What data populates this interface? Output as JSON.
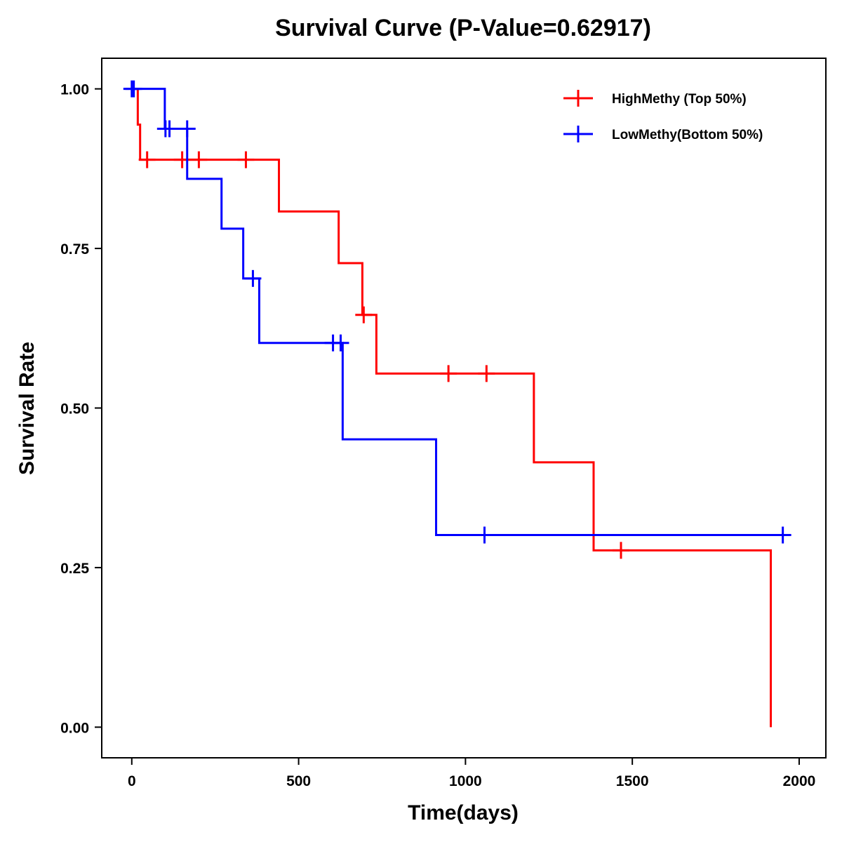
{
  "chart_data": {
    "type": "line",
    "subtype": "kaplan-meier step",
    "title": "Survival Curve (P-Value=0.62917)",
    "xlabel": "Time(days)",
    "ylabel": "Survival Rate",
    "xlim": [
      -90,
      2080
    ],
    "ylim": [
      -0.048,
      1.048
    ],
    "xticks": [
      0,
      500,
      1000,
      1500,
      2000
    ],
    "xtick_labels": [
      "0",
      "500",
      "1000",
      "1500",
      "2000"
    ],
    "yticks": [
      0,
      0.25,
      0.5,
      0.75,
      1.0
    ],
    "ytick_labels": [
      "0.00",
      "0.25",
      "0.50",
      "0.75",
      "1.00"
    ],
    "grid": false,
    "legend_position": "top-right",
    "series": [
      {
        "name": "HighMethy (Top 50%)",
        "color": "#ff0000",
        "steps": [
          {
            "t": 0,
            "s": 1.0
          },
          {
            "t": 18,
            "s": 0.944
          },
          {
            "t": 25,
            "s": 0.889
          },
          {
            "t": 441,
            "s": 0.808
          },
          {
            "t": 620,
            "s": 0.727
          },
          {
            "t": 691,
            "s": 0.646
          },
          {
            "t": 733,
            "s": 0.554
          },
          {
            "t": 1205,
            "s": 0.415
          },
          {
            "t": 1384,
            "s": 0.277
          },
          {
            "t": 1915,
            "s": 0.0
          }
        ],
        "end_time": 1915,
        "censored": [
          {
            "t": 46,
            "s": 0.889
          },
          {
            "t": 151,
            "s": 0.889
          },
          {
            "t": 201,
            "s": 0.889
          },
          {
            "t": 342,
            "s": 0.889
          },
          {
            "t": 695,
            "s": 0.646
          },
          {
            "t": 949,
            "s": 0.554
          },
          {
            "t": 1063,
            "s": 0.554
          },
          {
            "t": 1466,
            "s": 0.277
          }
        ]
      },
      {
        "name": "LowMethy(Bottom 50%)",
        "color": "#0000ff",
        "steps": [
          {
            "t": 0,
            "s": 1.0
          },
          {
            "t": 99,
            "s": 0.9375
          },
          {
            "t": 166,
            "s": 0.859
          },
          {
            "t": 269,
            "s": 0.781
          },
          {
            "t": 334,
            "s": 0.703
          },
          {
            "t": 382,
            "s": 0.602
          },
          {
            "t": 632,
            "s": 0.451
          },
          {
            "t": 912,
            "s": 0.301
          }
        ],
        "end_time": 1951,
        "censored": [
          {
            "t": 0,
            "s": 1.0
          },
          {
            "t": 6,
            "s": 1.0
          },
          {
            "t": 101,
            "s": 0.9375
          },
          {
            "t": 113,
            "s": 0.9375
          },
          {
            "t": 166,
            "s": 0.9375
          },
          {
            "t": 363,
            "s": 0.703
          },
          {
            "t": 603,
            "s": 0.602
          },
          {
            "t": 626,
            "s": 0.602
          },
          {
            "t": 1057,
            "s": 0.301
          },
          {
            "t": 1951,
            "s": 0.301
          }
        ]
      }
    ]
  }
}
